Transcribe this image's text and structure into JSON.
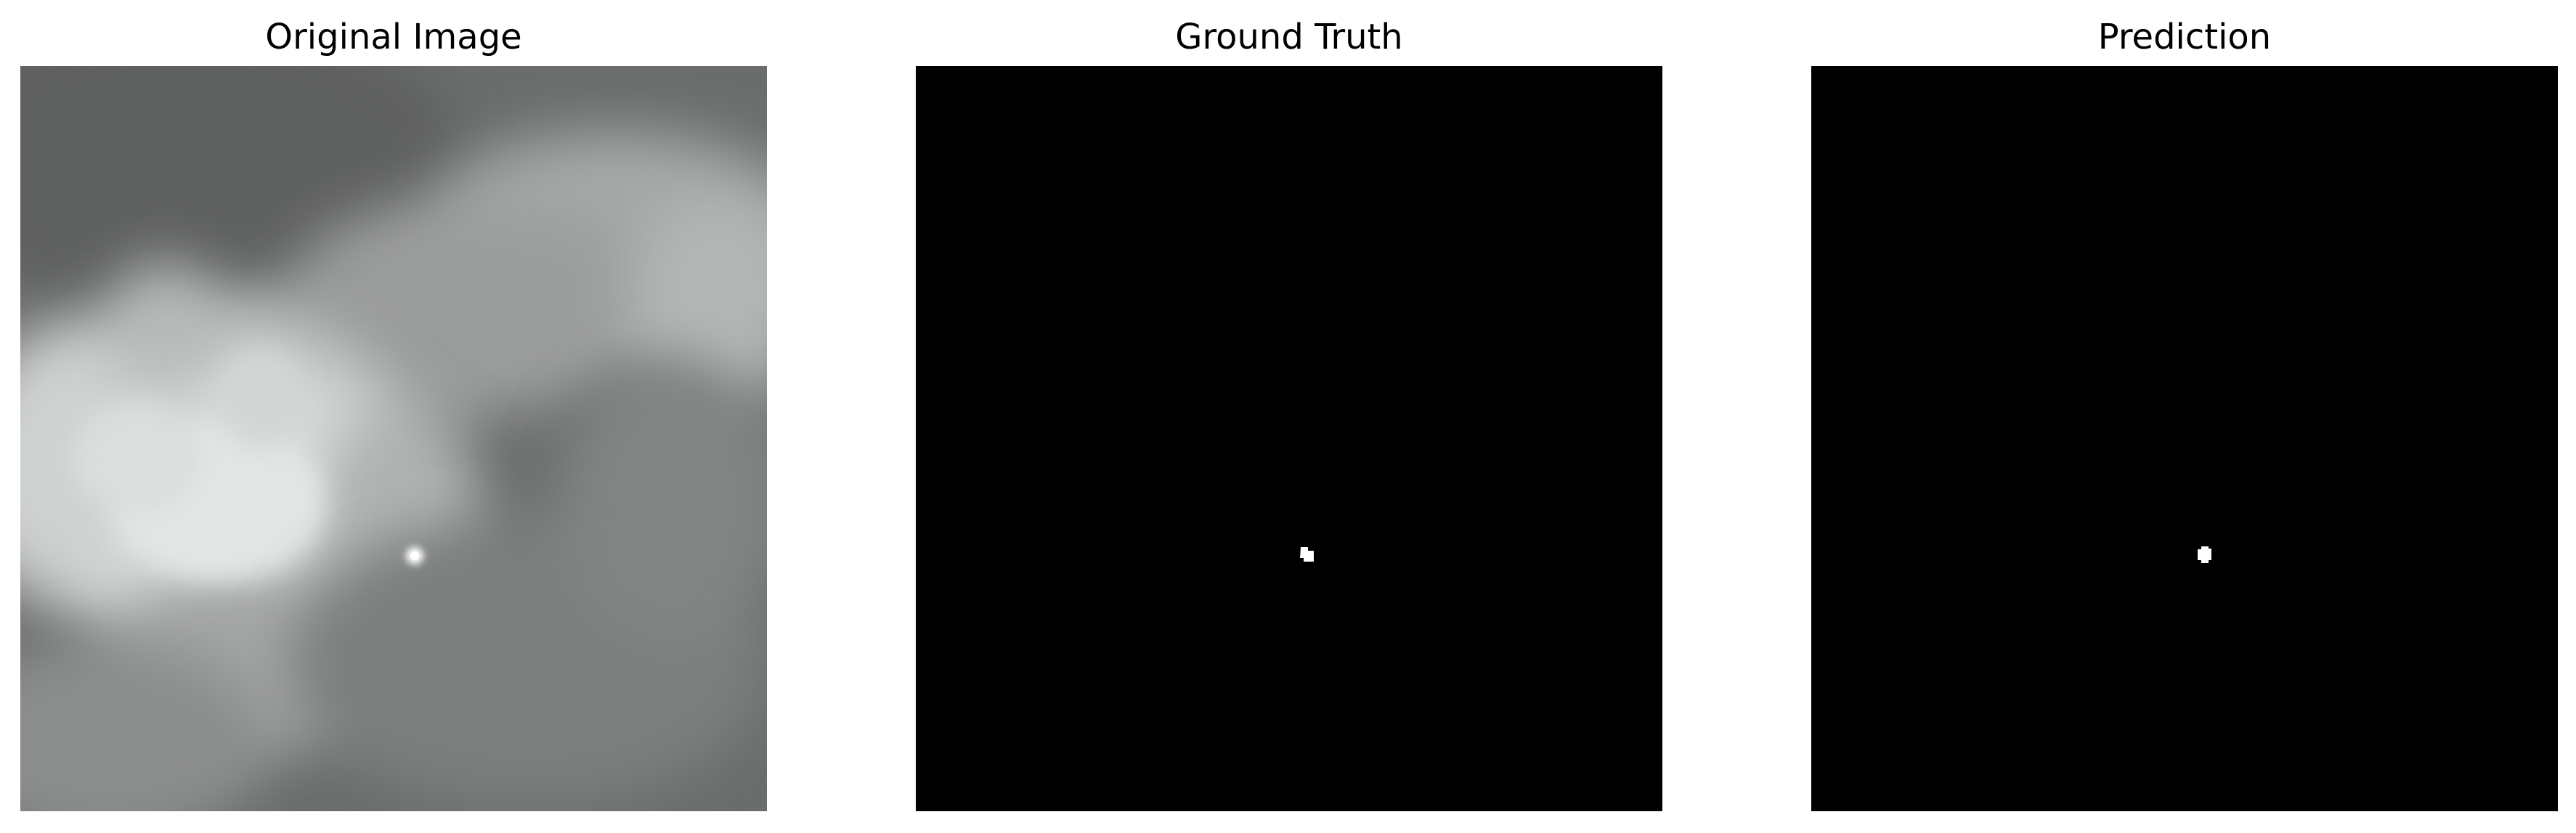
{
  "panels": [
    {
      "title": "Original Image"
    },
    {
      "title": "Ground Truth"
    },
    {
      "title": "Prediction"
    }
  ],
  "colors": {
    "background": "#ffffff",
    "mask_background": "#000000",
    "mask_foreground": "#ffffff",
    "image_tone_dark": "#6a6c6c",
    "image_tone_light": "#e8e8e8"
  }
}
